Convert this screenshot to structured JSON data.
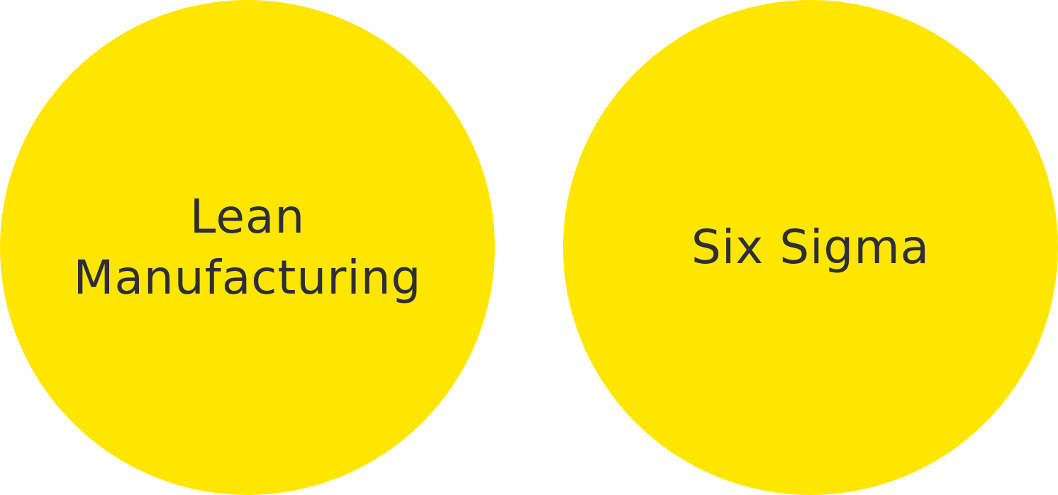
{
  "colors": {
    "circle_fill": "#FFE600",
    "label_text": "#2E2E38",
    "background": "#FFFFFF"
  },
  "circles": [
    {
      "label": "Lean\nManufacturing"
    },
    {
      "label": "Six Sigma"
    }
  ]
}
